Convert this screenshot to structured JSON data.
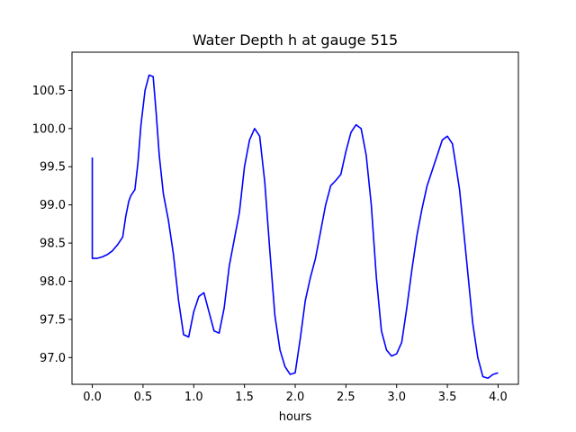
{
  "chart_data": {
    "type": "line",
    "title": "Water Depth h at gauge 515",
    "xlabel": "hours",
    "ylabel": "",
    "xlim": [
      -0.2,
      4.2
    ],
    "ylim": [
      96.65,
      101.0
    ],
    "xticks": [
      0.0,
      0.5,
      1.0,
      1.5,
      2.0,
      2.5,
      3.0,
      3.5,
      4.0
    ],
    "xtick_labels": [
      "0.0",
      "0.5",
      "1.0",
      "1.5",
      "2.0",
      "2.5",
      "3.0",
      "3.5",
      "4.0"
    ],
    "yticks": [
      97.0,
      97.5,
      98.0,
      98.5,
      99.0,
      99.5,
      100.0,
      100.5
    ],
    "ytick_labels": [
      "97.0",
      "97.5",
      "98.0",
      "98.5",
      "99.0",
      "99.5",
      "100.0",
      "100.5"
    ],
    "grid": false,
    "series": [
      {
        "color": "#0000ff",
        "x": [
          0.0,
          0.0,
          0.05,
          0.1,
          0.15,
          0.2,
          0.25,
          0.3,
          0.33,
          0.36,
          0.38,
          0.42,
          0.45,
          0.48,
          0.52,
          0.56,
          0.6,
          0.63,
          0.66,
          0.7,
          0.75,
          0.8,
          0.85,
          0.9,
          0.95,
          1.0,
          1.05,
          1.1,
          1.15,
          1.2,
          1.25,
          1.3,
          1.35,
          1.4,
          1.45,
          1.5,
          1.55,
          1.6,
          1.65,
          1.7,
          1.75,
          1.8,
          1.85,
          1.9,
          1.95,
          2.0,
          2.05,
          2.1,
          2.15,
          2.2,
          2.25,
          2.3,
          2.35,
          2.4,
          2.45,
          2.5,
          2.55,
          2.6,
          2.65,
          2.7,
          2.75,
          2.8,
          2.85,
          2.9,
          2.95,
          3.0,
          3.05,
          3.1,
          3.15,
          3.2,
          3.25,
          3.3,
          3.35,
          3.4,
          3.45,
          3.5,
          3.55,
          3.58,
          3.62,
          3.68,
          3.75,
          3.8,
          3.85,
          3.9,
          3.95,
          4.0
        ],
        "y": [
          99.62,
          98.3,
          98.3,
          98.32,
          98.35,
          98.4,
          98.48,
          98.58,
          98.85,
          99.05,
          99.12,
          99.2,
          99.55,
          100.05,
          100.5,
          100.7,
          100.68,
          100.2,
          99.65,
          99.15,
          98.8,
          98.35,
          97.75,
          97.3,
          97.27,
          97.6,
          97.8,
          97.85,
          97.6,
          97.35,
          97.32,
          97.65,
          98.2,
          98.55,
          98.9,
          99.5,
          99.85,
          100.0,
          99.9,
          99.3,
          98.4,
          97.55,
          97.1,
          96.88,
          96.78,
          96.8,
          97.25,
          97.75,
          98.05,
          98.3,
          98.65,
          99.0,
          99.25,
          99.32,
          99.4,
          99.7,
          99.95,
          100.05,
          100.0,
          99.65,
          99.0,
          98.05,
          97.35,
          97.1,
          97.02,
          97.05,
          97.2,
          97.65,
          98.15,
          98.6,
          98.95,
          99.25,
          99.45,
          99.65,
          99.85,
          99.9,
          99.8,
          99.55,
          99.2,
          98.4,
          97.45,
          97.0,
          96.75,
          96.73,
          96.78,
          96.8
        ]
      }
    ]
  }
}
